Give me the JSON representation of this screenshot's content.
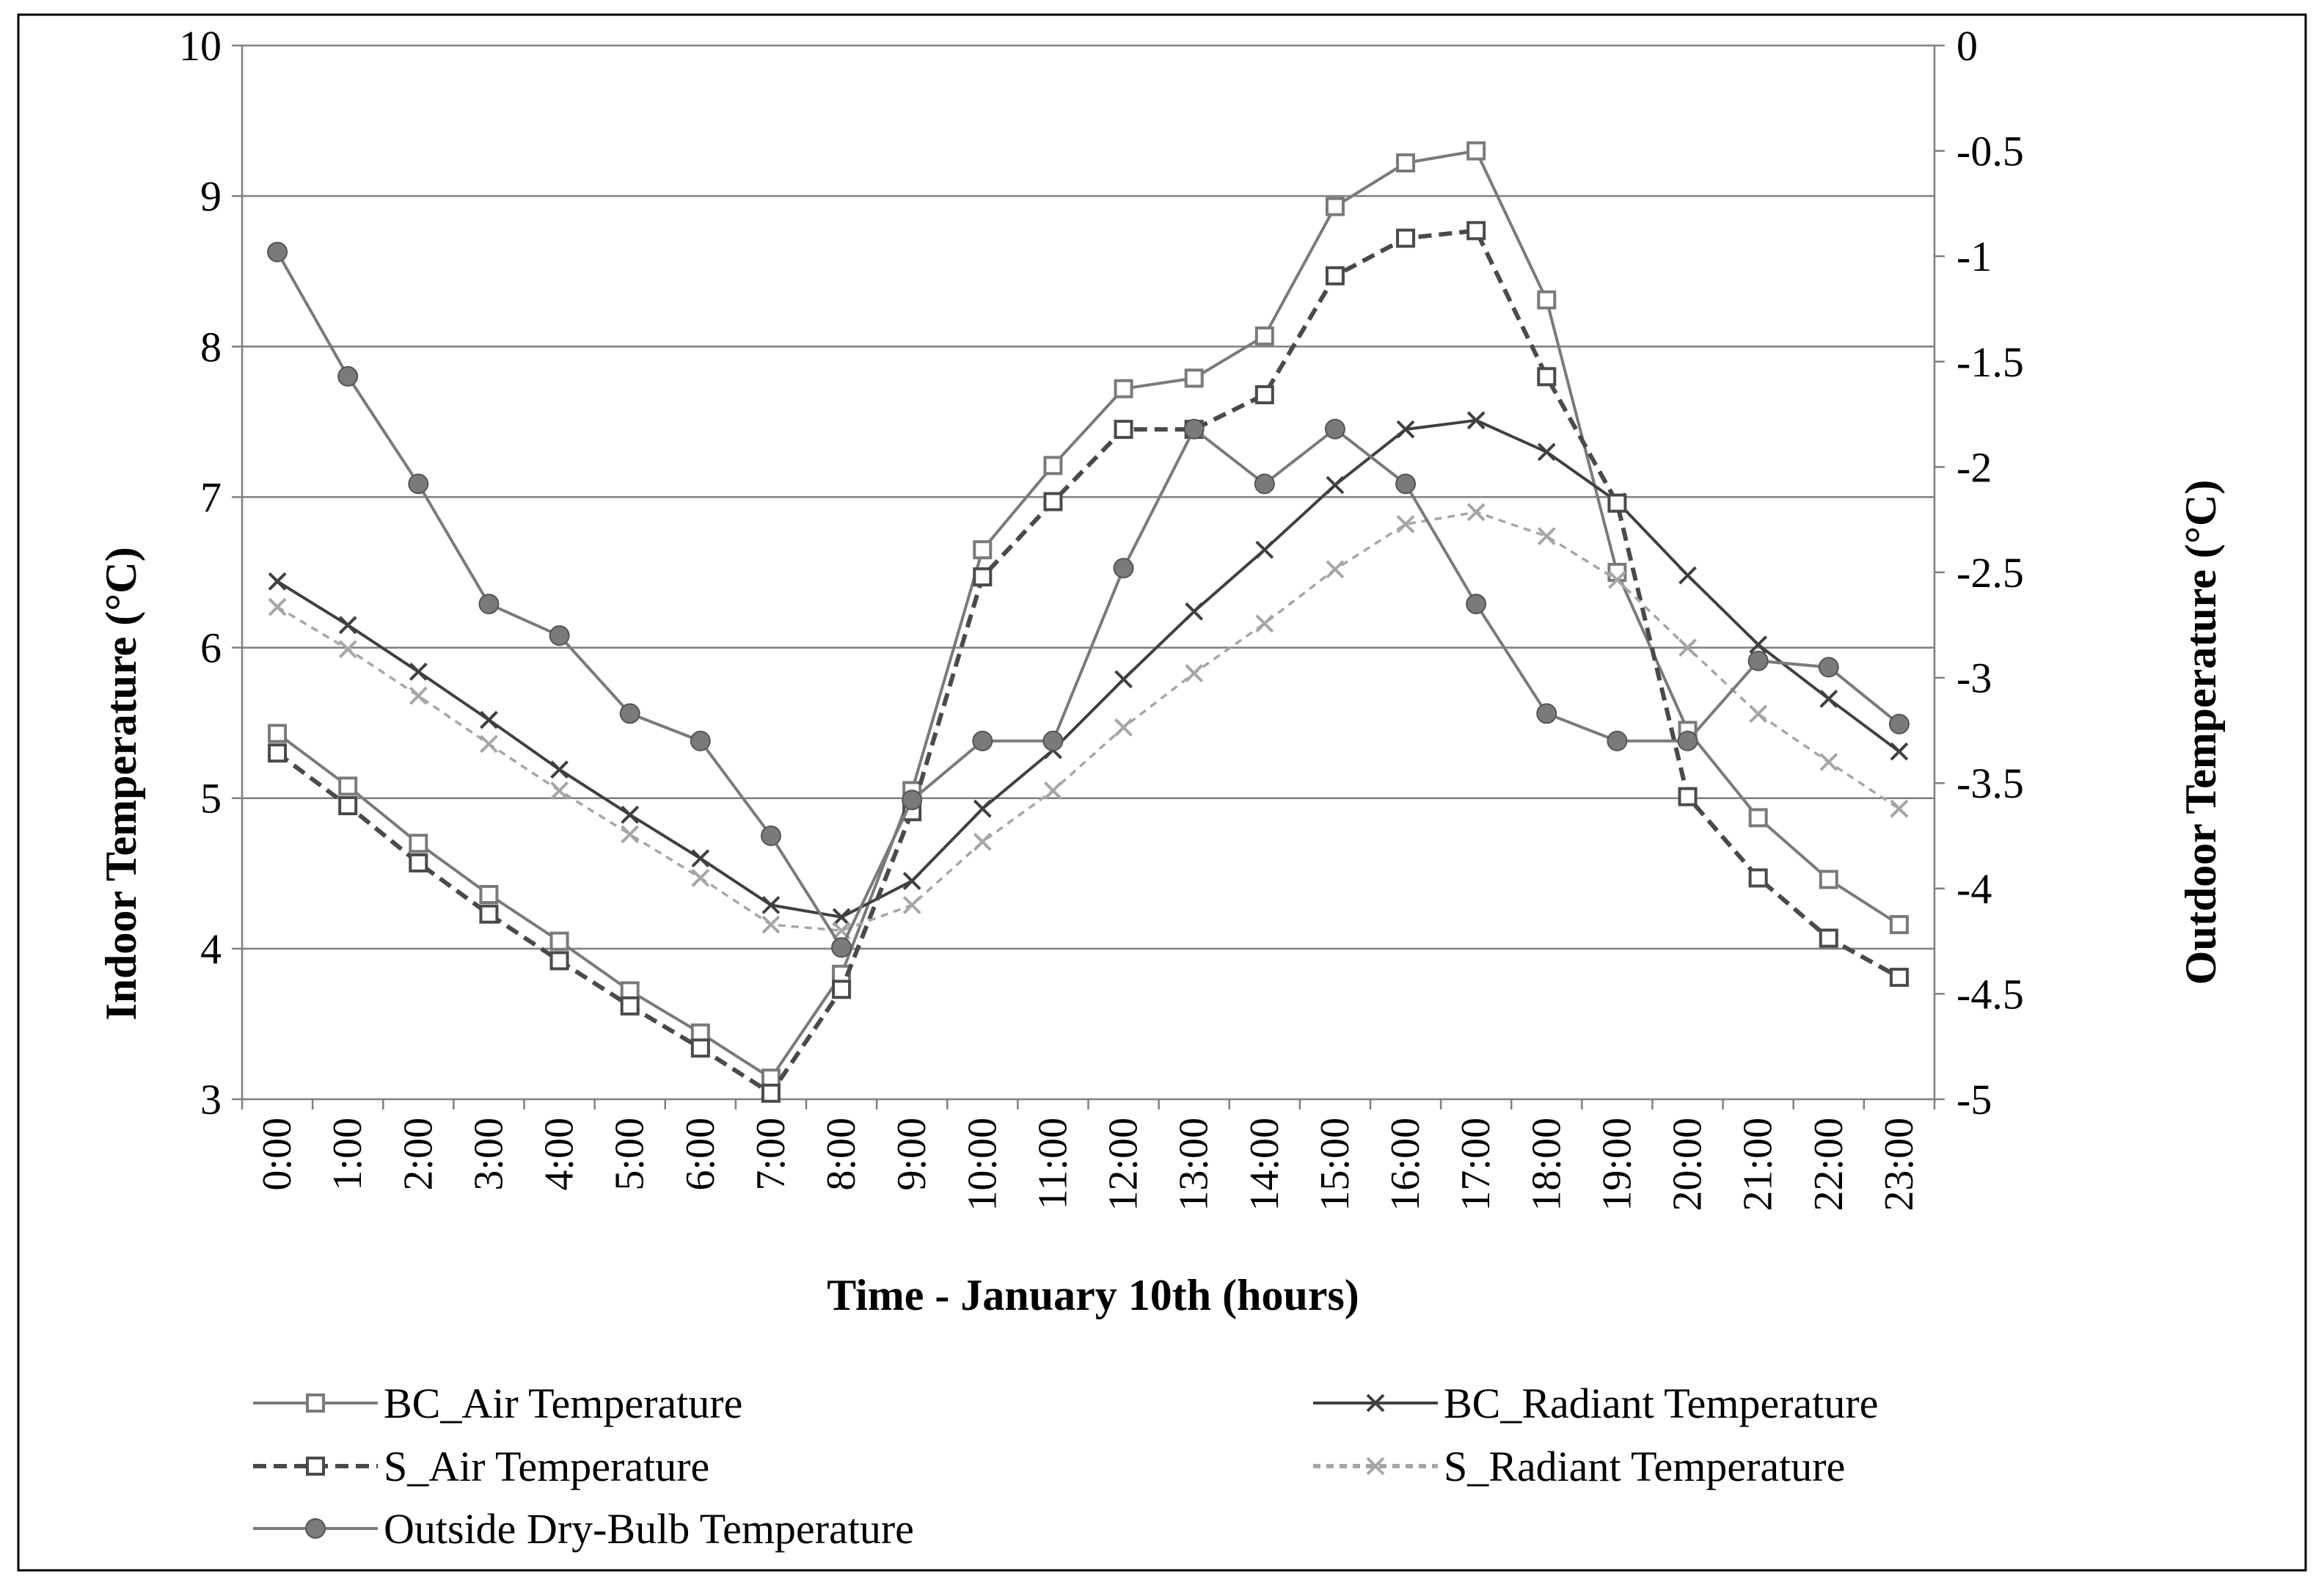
{
  "chart_data": {
    "type": "line",
    "xlabel": "Time - January 10th  (hours)",
    "ylabel": "Indoor Temperature   (°C)",
    "y2label": "Outdoor Temperature  (°C)",
    "categories": [
      "0:00",
      "1:00",
      "2:00",
      "3:00",
      "4:00",
      "5:00",
      "6:00",
      "7:00",
      "8:00",
      "9:00",
      "10:00",
      "11:00",
      "12:00",
      "13:00",
      "14:00",
      "15:00",
      "16:00",
      "17:00",
      "18:00",
      "19:00",
      "20:00",
      "21:00",
      "22:00",
      "23:00"
    ],
    "ylim": [
      3,
      10
    ],
    "yticks": [
      3,
      4,
      5,
      6,
      7,
      8,
      9,
      10
    ],
    "y2lim": [
      -5,
      0
    ],
    "y2ticks": [
      0,
      -0.5,
      -1,
      -1.5,
      -2,
      -2.5,
      -3,
      -3.5,
      -4,
      -4.5,
      -5
    ],
    "grid": true,
    "legend_position": "bottom",
    "series": [
      {
        "name": "BC_Air Temperature",
        "axis": "left",
        "color": "#7a7a7a",
        "dash": "solid",
        "marker": "open-square",
        "values": [
          5.43,
          5.08,
          4.7,
          4.36,
          4.05,
          3.72,
          3.44,
          3.14,
          3.83,
          5.05,
          6.65,
          7.21,
          7.72,
          7.79,
          8.07,
          8.93,
          9.22,
          9.3,
          8.31,
          6.5,
          5.45,
          4.87,
          4.46,
          4.16
        ]
      },
      {
        "name": "BC_Radiant Temperature",
        "axis": "left",
        "color": "#404040",
        "dash": "solid",
        "marker": "x",
        "values": [
          6.44,
          6.15,
          5.84,
          5.52,
          5.19,
          4.89,
          4.6,
          4.29,
          4.21,
          4.45,
          4.93,
          5.32,
          5.79,
          6.24,
          6.65,
          7.08,
          7.45,
          7.51,
          7.3,
          6.97,
          6.48,
          6.02,
          5.66,
          5.31
        ]
      },
      {
        "name": "S_Air Temperature",
        "axis": "left",
        "color": "#4a4a4a",
        "dash": "dashed",
        "marker": "open-square",
        "values": [
          5.3,
          4.95,
          4.57,
          4.23,
          3.92,
          3.62,
          3.34,
          3.04,
          3.73,
          4.91,
          6.47,
          6.97,
          7.45,
          7.45,
          7.68,
          8.47,
          8.72,
          8.77,
          7.8,
          6.96,
          5.01,
          4.47,
          4.07,
          3.81
        ]
      },
      {
        "name": "S_Radiant Temperature",
        "axis": "left",
        "color": "#a6a6a6",
        "dash": "dashed",
        "marker": "x",
        "values": [
          6.27,
          5.99,
          5.68,
          5.36,
          5.05,
          4.76,
          4.47,
          4.16,
          4.12,
          4.29,
          4.71,
          5.05,
          5.47,
          5.83,
          6.16,
          6.52,
          6.82,
          6.9,
          6.74,
          6.45,
          6.0,
          5.56,
          5.24,
          4.93
        ]
      },
      {
        "name": "Outside Dry-Bulb Temperature",
        "axis": "right",
        "color": "#7a7a7a",
        "dash": "solid",
        "marker": "filled-circle",
        "values": [
          -0.98,
          -1.57,
          -2.08,
          -2.65,
          -2.8,
          -3.17,
          -3.3,
          -3.75,
          -4.28,
          -3.58,
          -3.3,
          -3.3,
          -2.48,
          -1.82,
          -2.08,
          -1.82,
          -2.08,
          -2.65,
          -3.17,
          -3.3,
          -3.3,
          -2.92,
          -2.95,
          -3.22
        ]
      }
    ]
  }
}
